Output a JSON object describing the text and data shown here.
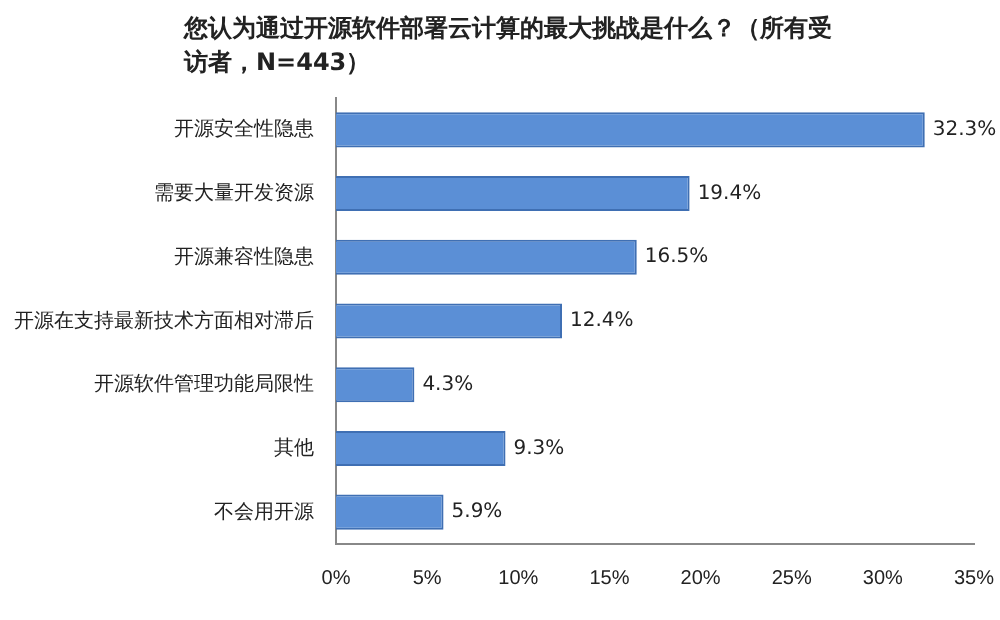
{
  "chart_data": {
    "type": "bar",
    "orientation": "horizontal",
    "title": "您认为通过开源软件部署云计算的最大挑战是什么？（所有受访者，N=443）",
    "categories": [
      "开源安全性隐患",
      "需要大量开发资源",
      "开源兼容性隐患",
      "开源在支持最新技术方面相对滞后",
      "开源软件管理功能局限性",
      "其他",
      "不会用开源"
    ],
    "values": [
      32.3,
      19.4,
      16.5,
      12.4,
      4.3,
      9.3,
      5.9
    ],
    "value_labels": [
      "32.3%",
      "19.4%",
      "16.5%",
      "12.4%",
      "4.3%",
      "9.3%",
      "5.9%"
    ],
    "color": "#5b8fd6",
    "xlim": [
      0,
      35
    ],
    "xticks": [
      {
        "value": 0,
        "label": "0%"
      },
      {
        "value": 5,
        "label": "5%"
      },
      {
        "value": 10,
        "label": "10%"
      },
      {
        "value": 15,
        "label": "15%"
      },
      {
        "value": 20,
        "label": "20%"
      },
      {
        "value": 25,
        "label": "25%"
      },
      {
        "value": 30,
        "label": "30%"
      },
      {
        "value": 35,
        "label": "35%"
      }
    ],
    "grid": false,
    "legend": false
  }
}
